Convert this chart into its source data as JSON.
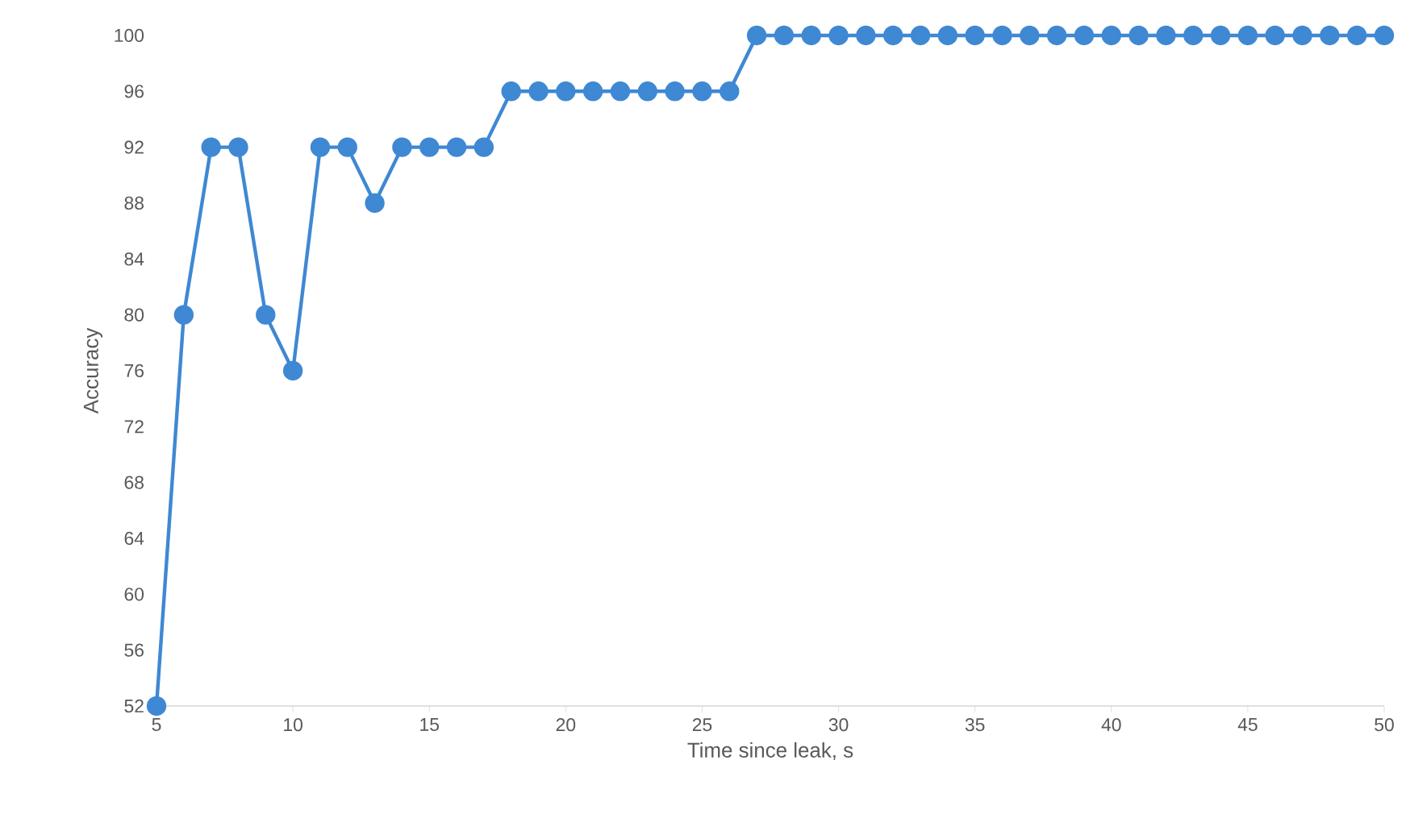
{
  "chart_data": {
    "type": "line",
    "xlabel": "Time since leak, s",
    "ylabel": "Accuracy",
    "x": [
      5,
      6,
      7,
      8,
      9,
      10,
      11,
      12,
      13,
      14,
      15,
      16,
      17,
      18,
      19,
      20,
      21,
      22,
      23,
      24,
      25,
      26,
      27,
      28,
      29,
      30,
      31,
      32,
      33,
      34,
      35,
      36,
      37,
      38,
      39,
      40,
      41,
      42,
      43,
      44,
      45,
      46,
      47,
      48,
      49,
      50
    ],
    "values": [
      52,
      80,
      92,
      92,
      80,
      76,
      92,
      92,
      88,
      92,
      92,
      92,
      92,
      96,
      96,
      96,
      96,
      96,
      96,
      96,
      96,
      96,
      100,
      100,
      100,
      100,
      100,
      100,
      100,
      100,
      100,
      100,
      100,
      100,
      100,
      100,
      100,
      100,
      100,
      100,
      100,
      100,
      100,
      100,
      100,
      100
    ],
    "color": "#3f88d3",
    "xlim": [
      5,
      50
    ],
    "xticks": [
      5,
      10,
      15,
      20,
      25,
      30,
      35,
      40,
      45,
      50
    ],
    "ylim": [
      52,
      100
    ],
    "yticks": [
      52,
      56,
      60,
      64,
      68,
      72,
      76,
      80,
      84,
      88,
      92,
      96,
      100
    ],
    "grid": false,
    "marker": "circle",
    "line_style": "solid"
  }
}
